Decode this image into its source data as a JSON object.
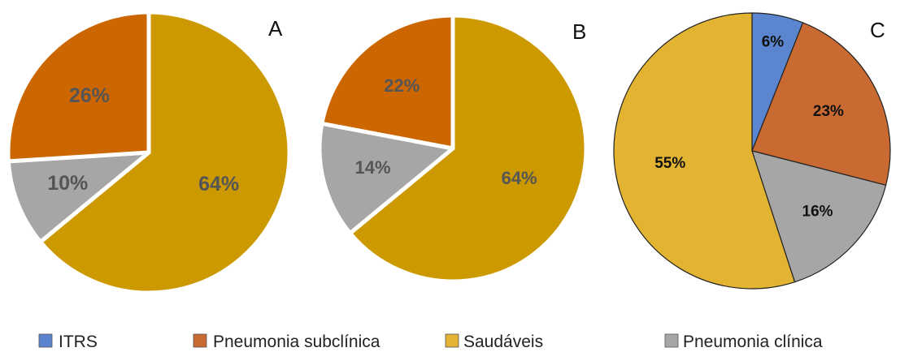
{
  "chart_data": [
    {
      "type": "pie",
      "panel_letter": "A",
      "colors": {
        "Pneumonia subclínica": "#cc6600",
        "Pneumonia clínica": "#a6a6a6",
        "Saudáveis": "#cc9900"
      },
      "slices": [
        {
          "category": "Saudáveis",
          "value": 64,
          "label": "64%"
        },
        {
          "category": "Pneumonia clínica",
          "value": 10,
          "label": "10%"
        },
        {
          "category": "Pneumonia subclínica",
          "value": 26,
          "label": "26%"
        }
      ]
    },
    {
      "type": "pie",
      "panel_letter": "B",
      "colors": {
        "Pneumonia subclínica": "#cc6600",
        "Pneumonia clínica": "#a6a6a6",
        "Saudáveis": "#cc9900"
      },
      "slices": [
        {
          "category": "Saudáveis",
          "value": 64,
          "label": "64%"
        },
        {
          "category": "Pneumonia clínica",
          "value": 14,
          "label": "14%"
        },
        {
          "category": "Pneumonia subclínica",
          "value": 22,
          "label": "22%"
        }
      ]
    },
    {
      "type": "pie",
      "panel_letter": "C",
      "colors": {
        "ITRS": "#5b86cf",
        "Pneumonia subclínica": "#c96a32",
        "Pneumonia clínica": "#a6a6a6",
        "Saudáveis": "#e3b431"
      },
      "slices": [
        {
          "category": "ITRS",
          "value": 6,
          "label": "6%"
        },
        {
          "category": "Pneumonia subclínica",
          "value": 23,
          "label": "23%"
        },
        {
          "category": "Pneumonia clínica",
          "value": 16,
          "label": "16%"
        },
        {
          "category": "Saudáveis",
          "value": 55,
          "label": "55%"
        }
      ]
    }
  ],
  "legend": [
    {
      "label": "ITRS",
      "color": "#5b86cf"
    },
    {
      "label": "Pneumonia subclínica",
      "color": "#c96a32"
    },
    {
      "label": "Saudáveis",
      "color": "#e3b431"
    },
    {
      "label": "Pneumonia clínica",
      "color": "#a6a6a6"
    }
  ]
}
